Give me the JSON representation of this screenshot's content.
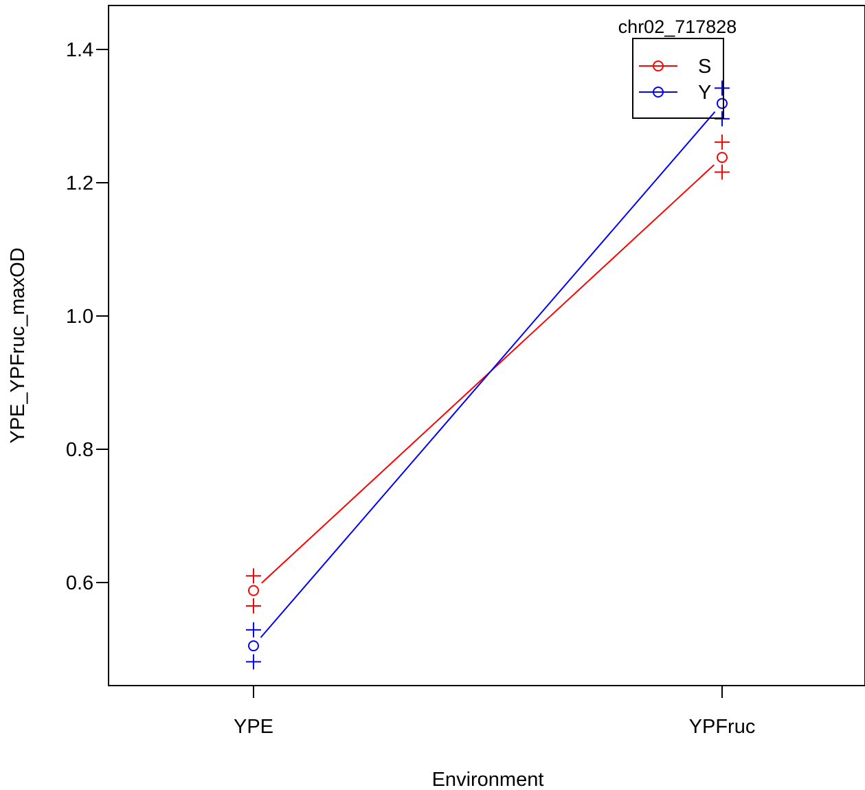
{
  "chart_data": {
    "type": "line",
    "categories": [
      "YPE",
      "YPFruc"
    ],
    "xlabel": "Environment",
    "ylabel": "YPE_YPFruc_maxOD",
    "ylim": [
      0.443,
      1.465
    ],
    "yticks": [
      0.6,
      0.8,
      1.0,
      1.2,
      1.4
    ],
    "ytick_labels": [
      "0.6",
      "0.8",
      "1.0",
      "1.2",
      "1.4"
    ],
    "legend": {
      "title": "chr02_717828",
      "placement": "top-right",
      "entries": [
        "S",
        "Y"
      ]
    },
    "series": [
      {
        "name": "S",
        "color": "#ff0000",
        "values": [
          0.588,
          1.238
        ],
        "upper": [
          0.61,
          1.261
        ],
        "lower": [
          0.565,
          1.216
        ]
      },
      {
        "name": "Y",
        "color": "#0000ff",
        "values": [
          0.505,
          1.319
        ],
        "upper": [
          0.529,
          1.342
        ],
        "lower": [
          0.481,
          1.296
        ]
      }
    ]
  }
}
